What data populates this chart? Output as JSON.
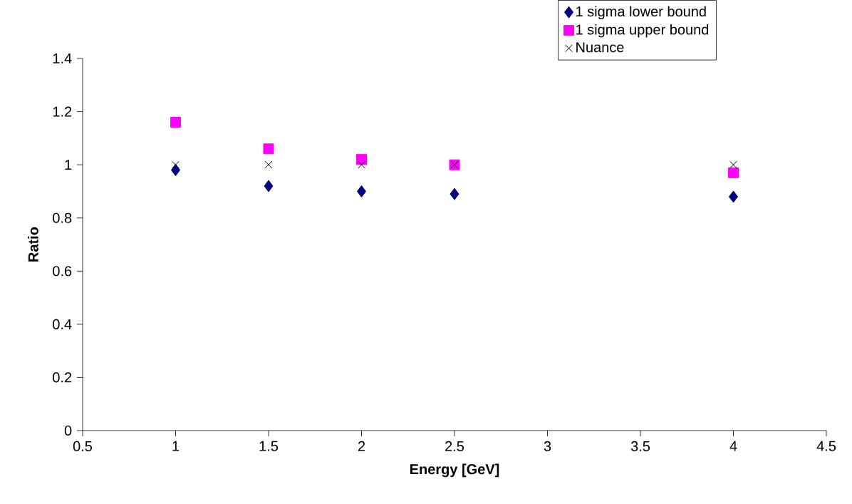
{
  "chart_data": {
    "type": "scatter",
    "xlabel": "Energy [GeV]",
    "ylabel": "Ratio",
    "x": [
      1,
      1.5,
      2,
      2.5,
      4
    ],
    "series": [
      {
        "name": "1 sigma lower bound",
        "color": "#000080",
        "marker": "diamond",
        "values": [
          0.98,
          0.92,
          0.9,
          0.89,
          0.88
        ]
      },
      {
        "name": "1 sigma upper bound",
        "color": "#ff00ff",
        "marker": "square",
        "values": [
          1.16,
          1.06,
          1.02,
          1.0,
          0.97
        ]
      },
      {
        "name": "Nuance",
        "color": "#000000",
        "marker": "cross",
        "values": [
          1,
          1,
          1,
          1,
          1
        ]
      }
    ],
    "xlim": [
      0.5,
      4.5
    ],
    "xticks": [
      0.5,
      1,
      1.5,
      2,
      2.5,
      3,
      3.5,
      4,
      4.5
    ],
    "ylim": [
      0,
      1.4
    ],
    "yticks": [
      0,
      0.2,
      0.4,
      0.6,
      0.8,
      1,
      1.2,
      1.4
    ],
    "grid": false,
    "legend": "top right"
  }
}
